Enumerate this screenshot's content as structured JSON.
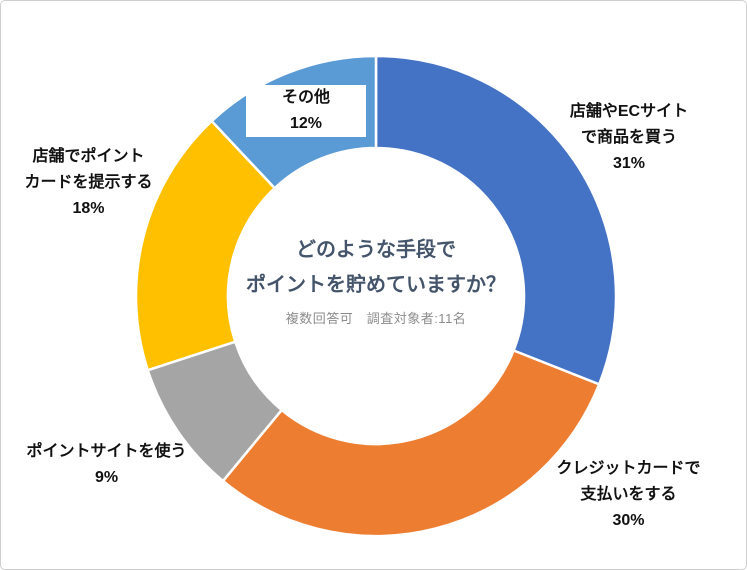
{
  "frame": {
    "background": "#ffffff",
    "border_color": "#cfcfcf"
  },
  "chart_data": {
    "type": "pie",
    "donut": true,
    "direction": "clockwise",
    "start_angle_deg": 0,
    "total": 100,
    "center_title": "どのような手段でポイントを貯めていますか？",
    "center_title_lines": [
      "どのような手段で",
      "ポイントを貯めていますか？"
    ],
    "center_subtitle": "複数回答可　調査対象者:11名",
    "title_color": "#44546A",
    "subtitle_color": "#8c8c8c",
    "segment_gap_color": "#ffffff",
    "segments": [
      {
        "label": "店舗やECサイトで商品を買う",
        "label_lines": [
          "店舗やECサイト",
          "で商品を買う"
        ],
        "value": 31,
        "pct_label": "31%",
        "color": "#4472C4"
      },
      {
        "label": "クレジットカードで支払いをする",
        "label_lines": [
          "クレジットカードで",
          "支払いをする"
        ],
        "value": 30,
        "pct_label": "30%",
        "color": "#ED7D31"
      },
      {
        "label": "ポイントサイトを使う",
        "label_lines": [
          "ポイントサイトを使う"
        ],
        "value": 9,
        "pct_label": "9%",
        "color": "#A5A5A5"
      },
      {
        "label": "店舗でポイントカードを提示する",
        "label_lines": [
          "店舗でポイント",
          "カードを提示する"
        ],
        "value": 18,
        "pct_label": "18%",
        "color": "#FFC000"
      },
      {
        "label": "その他",
        "label_lines": [
          "その他"
        ],
        "value": 12,
        "pct_label": "12%",
        "color": "#5B9BD5"
      }
    ]
  }
}
